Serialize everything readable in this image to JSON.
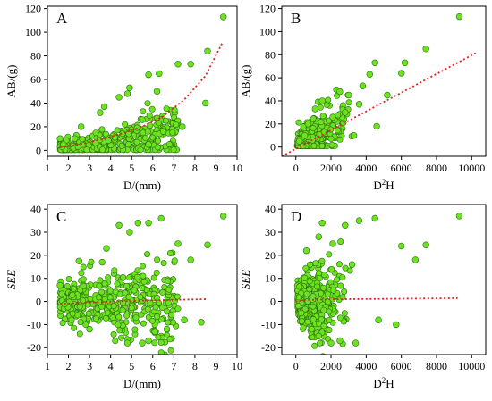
{
  "colors": {
    "marker_fill": "#6be31f",
    "marker_edge": "#2f6d12",
    "fit_line": "#e0241c",
    "frame": "#000000"
  },
  "chart_data": [
    {
      "panel": "A",
      "type": "scatter",
      "xlabel": "D/(mm)",
      "ylabel": "AB/(g)",
      "xlim": [
        1,
        10
      ],
      "ylim": [
        -5,
        122
      ],
      "xticks": [
        1,
        2,
        3,
        4,
        5,
        6,
        7,
        8,
        9,
        10
      ],
      "yticks": [
        0,
        20,
        40,
        60,
        80,
        100,
        120
      ],
      "grid": false,
      "fit_line": {
        "style": "dotted",
        "points": [
          [
            1.6,
            2.5
          ],
          [
            2.5,
            5
          ],
          [
            3.5,
            9
          ],
          [
            4.5,
            14
          ],
          [
            5.5,
            20
          ],
          [
            6.5,
            29
          ],
          [
            7.5,
            43
          ],
          [
            8.5,
            63
          ],
          [
            9.3,
            91
          ]
        ]
      },
      "highlighted_points": [
        [
          9.35,
          113
        ],
        [
          8.6,
          84
        ],
        [
          7.8,
          73
        ],
        [
          7.2,
          73
        ],
        [
          6.3,
          65
        ],
        [
          5.8,
          64
        ],
        [
          4.9,
          53
        ],
        [
          6.2,
          50
        ],
        [
          8.5,
          40
        ],
        [
          4.4,
          45
        ],
        [
          3.7,
          37
        ],
        [
          5.8,
          5
        ],
        [
          6.5,
          16
        ],
        [
          7.4,
          20
        ],
        [
          5.5,
          26
        ],
        [
          2.6,
          20
        ],
        [
          2.3,
          10
        ],
        [
          1.6,
          10
        ],
        [
          3.5,
          32
        ],
        [
          4.8,
          48
        ]
      ]
    },
    {
      "panel": "B",
      "type": "scatter",
      "xlabel": "D²H",
      "ylabel": "AB/(g)",
      "xlim": [
        -800,
        10800
      ],
      "ylim": [
        -8,
        122
      ],
      "xticks": [
        0,
        2000,
        4000,
        6000,
        8000,
        10000
      ],
      "yticks": [
        0,
        20,
        40,
        60,
        80,
        100,
        120
      ],
      "grid": false,
      "fit_line": {
        "style": "dotted",
        "points": [
          [
            -800,
            -8
          ],
          [
            10300,
            82
          ]
        ]
      },
      "highlighted_points": [
        [
          9300,
          113
        ],
        [
          7400,
          85
        ],
        [
          6200,
          73
        ],
        [
          4500,
          73
        ],
        [
          6000,
          64
        ],
        [
          4200,
          63
        ],
        [
          5200,
          45
        ],
        [
          3800,
          53
        ],
        [
          2500,
          48
        ],
        [
          3000,
          45
        ],
        [
          2800,
          30
        ],
        [
          1500,
          40
        ],
        [
          3300,
          10
        ],
        [
          4600,
          18
        ],
        [
          700,
          20
        ],
        [
          500,
          10
        ],
        [
          200,
          5
        ],
        [
          1100,
          33
        ],
        [
          2100,
          26
        ],
        [
          3600,
          37
        ]
      ]
    },
    {
      "panel": "C",
      "type": "scatter",
      "xlabel": "D/(mm)",
      "ylabel": "SEE",
      "xlim": [
        1,
        10
      ],
      "ylim": [
        -23,
        42
      ],
      "xticks": [
        1,
        2,
        3,
        4,
        5,
        6,
        7,
        8,
        9,
        10
      ],
      "yticks": [
        -20,
        -10,
        0,
        10,
        20,
        30,
        40
      ],
      "grid": false,
      "fit_line": {
        "style": "dotted",
        "points": [
          [
            1.6,
            -1
          ],
          [
            3,
            -0.5
          ],
          [
            5,
            0.2
          ],
          [
            7,
            0.7
          ],
          [
            8.6,
            1
          ]
        ]
      },
      "highlighted_points": [
        [
          9.35,
          37
        ],
        [
          8.6,
          24.5
        ],
        [
          7.2,
          25
        ],
        [
          7.8,
          18
        ],
        [
          6.4,
          36
        ],
        [
          5.8,
          34
        ],
        [
          5.3,
          34
        ],
        [
          4.9,
          30
        ],
        [
          4.4,
          33
        ],
        [
          3.8,
          23
        ],
        [
          3.6,
          17
        ],
        [
          2.5,
          17.5
        ],
        [
          1.6,
          7
        ],
        [
          5.8,
          -17
        ],
        [
          5.5,
          -18
        ],
        [
          4.8,
          -18
        ],
        [
          7.5,
          -8
        ],
        [
          8.3,
          -9
        ],
        [
          6.1,
          -13
        ],
        [
          3,
          -12
        ]
      ]
    },
    {
      "panel": "D",
      "type": "scatter",
      "xlabel": "D²H",
      "ylabel": "SEE",
      "xlim": [
        -800,
        10800
      ],
      "ylim": [
        -23,
        42
      ],
      "xticks": [
        0,
        2000,
        4000,
        6000,
        8000,
        10000
      ],
      "yticks": [
        -20,
        -10,
        0,
        10,
        20,
        30,
        40
      ],
      "grid": false,
      "fit_line": {
        "style": "dotted",
        "points": [
          [
            0,
            0
          ],
          [
            500,
            0.6
          ],
          [
            2000,
            0.9
          ],
          [
            5000,
            1.1
          ],
          [
            9200,
            1.4
          ]
        ]
      },
      "highlighted_points": [
        [
          9300,
          37
        ],
        [
          7400,
          24.5
        ],
        [
          6000,
          24
        ],
        [
          4500,
          36
        ],
        [
          3600,
          35
        ],
        [
          2800,
          33
        ],
        [
          1500,
          34
        ],
        [
          2100,
          25
        ],
        [
          1300,
          28
        ],
        [
          600,
          22
        ],
        [
          3200,
          16
        ],
        [
          6800,
          18
        ],
        [
          2500,
          -17
        ],
        [
          2000,
          -18
        ],
        [
          3400,
          -18
        ],
        [
          4700,
          -8
        ],
        [
          5700,
          -10
        ],
        [
          1300,
          -15
        ],
        [
          300,
          -5
        ],
        [
          900,
          -12
        ]
      ]
    }
  ]
}
